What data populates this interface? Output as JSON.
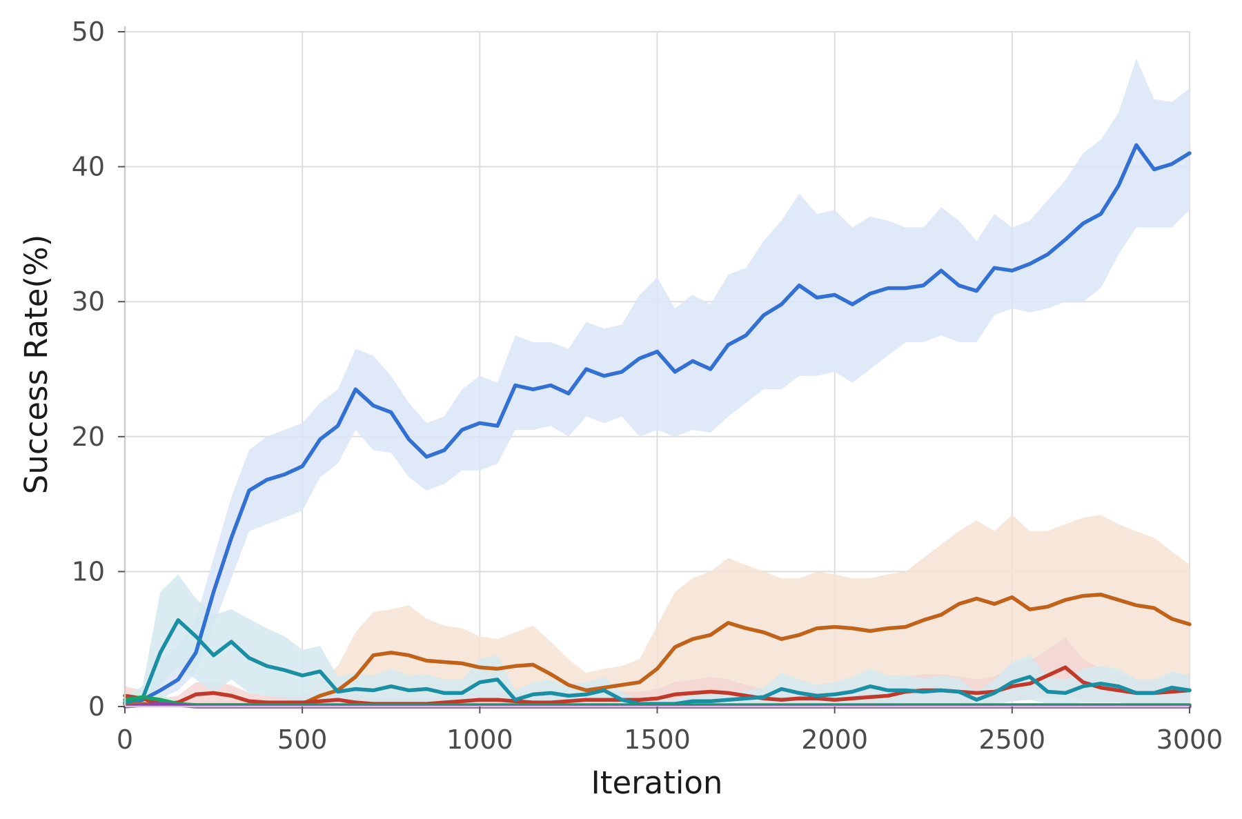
{
  "chart_data": {
    "type": "line",
    "title": "",
    "xlabel": "Iteration",
    "ylabel": "Success Rate(%)",
    "xlim": [
      0,
      3000
    ],
    "ylim": [
      0,
      50
    ],
    "xticks": [
      0,
      500,
      1000,
      1500,
      2000,
      2500,
      3000
    ],
    "yticks": [
      0,
      10,
      20,
      30,
      40,
      50
    ],
    "grid": true,
    "legend": "none",
    "x": [
      0,
      50,
      100,
      150,
      200,
      250,
      300,
      350,
      400,
      450,
      500,
      550,
      600,
      650,
      700,
      750,
      800,
      850,
      900,
      950,
      1000,
      1050,
      1100,
      1150,
      1200,
      1250,
      1300,
      1350,
      1400,
      1450,
      1500,
      1550,
      1600,
      1650,
      1700,
      1750,
      1800,
      1850,
      1900,
      1950,
      2000,
      2050,
      2100,
      2150,
      2200,
      2250,
      2300,
      2350,
      2400,
      2450,
      2500,
      2550,
      2600,
      2650,
      2700,
      2750,
      2800,
      2850,
      2900,
      2950,
      3000
    ],
    "series": [
      {
        "color": "#3370d4",
        "band_color": "#d9e5f7",
        "values": [
          0.2,
          0.5,
          1.2,
          2.0,
          4.0,
          8.5,
          12.5,
          16.0,
          16.8,
          17.2,
          17.8,
          19.8,
          20.8,
          23.5,
          22.3,
          21.8,
          19.8,
          18.5,
          19.0,
          20.5,
          21.0,
          20.8,
          23.8,
          23.5,
          23.8,
          23.2,
          25.0,
          24.5,
          24.8,
          25.8,
          26.3,
          24.8,
          25.6,
          25.0,
          26.8,
          27.5,
          29.0,
          29.8,
          31.2,
          30.3,
          30.5,
          29.8,
          30.6,
          31.0,
          31.0,
          31.2,
          32.3,
          31.2,
          30.8,
          32.5,
          32.3,
          32.8,
          33.5,
          34.6,
          35.8,
          36.5,
          38.6,
          41.6,
          39.8,
          40.2,
          41.0
        ],
        "lower": [
          0.1,
          0.2,
          0.6,
          1.2,
          2.5,
          6.0,
          9.5,
          13.0,
          13.5,
          14.0,
          14.5,
          17.0,
          18.0,
          20.5,
          19.0,
          18.8,
          17.0,
          16.0,
          16.5,
          17.5,
          17.5,
          18.0,
          20.5,
          20.5,
          20.8,
          20.0,
          21.5,
          21.0,
          21.5,
          20.0,
          20.5,
          20.0,
          20.5,
          20.3,
          21.5,
          22.5,
          23.5,
          23.5,
          24.5,
          24.5,
          24.8,
          24.0,
          25.0,
          26.0,
          27.0,
          27.0,
          27.5,
          27.0,
          27.0,
          29.0,
          29.5,
          29.2,
          29.5,
          30.0,
          30.0,
          31.0,
          33.5,
          35.5,
          35.5,
          35.5,
          36.8
        ],
        "upper": [
          0.4,
          1.2,
          3.5,
          4.5,
          6.5,
          11.0,
          15.5,
          19.0,
          20.0,
          20.5,
          21.0,
          22.5,
          23.5,
          26.5,
          26.0,
          24.5,
          22.5,
          21.0,
          21.5,
          23.5,
          24.5,
          24.0,
          27.5,
          27.0,
          27.0,
          26.5,
          28.5,
          28.0,
          28.3,
          30.5,
          31.8,
          29.5,
          30.5,
          29.8,
          32.0,
          32.5,
          34.5,
          36.0,
          38.0,
          36.5,
          36.8,
          35.5,
          36.3,
          36.0,
          35.5,
          35.5,
          37.0,
          36.0,
          34.5,
          36.5,
          35.5,
          36.0,
          37.5,
          39.0,
          41.0,
          42.0,
          44.0,
          48.0,
          45.0,
          44.8,
          45.8
        ]
      },
      {
        "color": "#c0621a",
        "band_color": "#f5e3d3",
        "values": [
          0.2,
          0.2,
          0.2,
          0.1,
          0.1,
          0.1,
          0.1,
          0.1,
          0.1,
          0.1,
          0.2,
          0.8,
          1.2,
          2.2,
          3.8,
          4.0,
          3.8,
          3.4,
          3.3,
          3.2,
          2.9,
          2.8,
          3.0,
          3.1,
          2.4,
          1.6,
          1.2,
          1.4,
          1.6,
          1.8,
          2.8,
          4.4,
          5.0,
          5.3,
          6.2,
          5.8,
          5.5,
          5.0,
          5.3,
          5.8,
          5.9,
          5.8,
          5.6,
          5.8,
          5.9,
          6.4,
          6.8,
          7.6,
          8.0,
          7.6,
          8.1,
          7.2,
          7.4,
          7.9,
          8.2,
          8.3,
          7.9,
          7.5,
          7.3,
          6.5,
          6.1
        ],
        "lower": [
          0.0,
          0.0,
          0.0,
          0.0,
          0.0,
          0.0,
          0.0,
          0.0,
          0.0,
          0.0,
          0.0,
          0.0,
          0.0,
          0.0,
          0.0,
          0.2,
          0.1,
          0.1,
          0.1,
          0.1,
          0.1,
          0.1,
          0.1,
          0.1,
          0.1,
          0.1,
          0.1,
          0.1,
          0.1,
          0.1,
          0.1,
          0.1,
          0.2,
          0.2,
          0.3,
          0.3,
          0.3,
          0.2,
          0.3,
          0.4,
          0.4,
          0.3,
          0.3,
          0.4,
          0.4,
          0.5,
          0.5,
          0.6,
          0.6,
          0.6,
          0.7,
          0.6,
          0.6,
          0.7,
          0.8,
          0.8,
          0.8,
          0.7,
          0.7,
          0.6,
          0.6
        ],
        "upper": [
          0.8,
          0.8,
          0.8,
          0.5,
          0.4,
          0.4,
          0.4,
          0.4,
          0.4,
          0.4,
          0.8,
          2.0,
          3.0,
          5.5,
          7.0,
          7.2,
          7.5,
          6.5,
          6.0,
          5.8,
          5.2,
          5.0,
          5.5,
          6.0,
          4.8,
          3.5,
          2.5,
          2.8,
          3.0,
          3.5,
          6.0,
          8.5,
          9.5,
          10.0,
          11.0,
          10.5,
          10.0,
          9.5,
          9.5,
          10.0,
          9.8,
          9.5,
          9.5,
          9.8,
          10.0,
          11.0,
          12.0,
          13.0,
          13.8,
          13.0,
          14.2,
          13.0,
          13.0,
          13.5,
          14.0,
          14.2,
          13.5,
          13.0,
          12.5,
          11.5,
          10.5
        ]
      },
      {
        "color": "#c0392b",
        "band_color": "#f3d5d2",
        "values": [
          0.8,
          0.6,
          0.2,
          0.3,
          0.9,
          1.0,
          0.8,
          0.4,
          0.3,
          0.3,
          0.3,
          0.4,
          0.5,
          0.3,
          0.2,
          0.2,
          0.2,
          0.2,
          0.3,
          0.4,
          0.5,
          0.5,
          0.4,
          0.3,
          0.3,
          0.4,
          0.5,
          0.5,
          0.5,
          0.5,
          0.6,
          0.9,
          1.0,
          1.1,
          1.0,
          0.8,
          0.6,
          0.5,
          0.6,
          0.6,
          0.5,
          0.6,
          0.7,
          0.8,
          1.1,
          1.2,
          1.2,
          1.1,
          1.0,
          1.1,
          1.5,
          1.7,
          2.3,
          2.9,
          1.8,
          1.4,
          1.2,
          1.0,
          1.0,
          1.1,
          1.2
        ],
        "lower": [
          0.2,
          0.1,
          0.0,
          0.0,
          0.2,
          0.2,
          0.1,
          0.0,
          0.0,
          0.0,
          0.0,
          0.0,
          0.0,
          0.0,
          0.0,
          0.0,
          0.0,
          0.0,
          0.0,
          0.0,
          0.0,
          0.0,
          0.0,
          0.0,
          0.0,
          0.0,
          0.0,
          0.0,
          0.0,
          0.0,
          0.0,
          0.1,
          0.2,
          0.2,
          0.2,
          0.1,
          0.1,
          0.1,
          0.1,
          0.1,
          0.1,
          0.1,
          0.1,
          0.2,
          0.3,
          0.3,
          0.3,
          0.3,
          0.2,
          0.3,
          0.4,
          0.5,
          0.7,
          0.9,
          0.4,
          0.3,
          0.3,
          0.2,
          0.2,
          0.3,
          0.3
        ],
        "upper": [
          1.5,
          1.2,
          0.6,
          0.8,
          1.8,
          1.8,
          1.6,
          1.0,
          0.8,
          0.8,
          0.8,
          1.0,
          1.1,
          0.8,
          0.6,
          0.6,
          0.6,
          0.6,
          0.8,
          1.0,
          1.1,
          1.1,
          1.0,
          0.8,
          0.8,
          0.9,
          1.1,
          1.1,
          1.1,
          1.1,
          1.3,
          1.8,
          2.0,
          2.2,
          2.0,
          1.6,
          1.3,
          1.1,
          1.3,
          1.3,
          1.1,
          1.3,
          1.5,
          1.7,
          2.2,
          2.4,
          2.4,
          2.2,
          2.0,
          2.2,
          3.0,
          3.4,
          4.2,
          5.1,
          3.5,
          2.8,
          2.4,
          2.0,
          2.0,
          2.2,
          2.4
        ]
      },
      {
        "color": "#1a8fa3",
        "band_color": "#d3e9ee",
        "values": [
          0.3,
          0.6,
          4.0,
          6.4,
          5.2,
          3.8,
          4.8,
          3.6,
          3.0,
          2.7,
          2.3,
          2.6,
          1.1,
          1.3,
          1.2,
          1.5,
          1.2,
          1.3,
          1.0,
          1.0,
          1.8,
          2.0,
          0.5,
          0.9,
          1.0,
          0.8,
          0.9,
          1.2,
          0.5,
          0.2,
          0.2,
          0.2,
          0.4,
          0.4,
          0.5,
          0.6,
          0.7,
          1.3,
          1.0,
          0.8,
          0.9,
          1.1,
          1.5,
          1.2,
          1.2,
          1.1,
          1.2,
          1.1,
          0.5,
          1.0,
          1.8,
          2.2,
          1.1,
          1.0,
          1.5,
          1.7,
          1.5,
          1.0,
          1.0,
          1.4,
          1.2
        ],
        "lower": [
          0.0,
          0.1,
          1.5,
          3.0,
          2.0,
          1.0,
          2.0,
          1.0,
          0.8,
          0.6,
          0.4,
          0.5,
          0.1,
          0.2,
          0.2,
          0.3,
          0.2,
          0.2,
          0.1,
          0.1,
          0.3,
          0.4,
          0.0,
          0.1,
          0.1,
          0.1,
          0.1,
          0.2,
          0.0,
          0.0,
          0.0,
          0.0,
          0.0,
          0.0,
          0.0,
          0.0,
          0.1,
          0.2,
          0.1,
          0.1,
          0.1,
          0.2,
          0.3,
          0.2,
          0.2,
          0.2,
          0.2,
          0.2,
          0.0,
          0.1,
          0.4,
          0.5,
          0.2,
          0.1,
          0.3,
          0.3,
          0.3,
          0.1,
          0.1,
          0.2,
          0.2
        ],
        "upper": [
          0.8,
          1.5,
          8.5,
          9.8,
          8.0,
          6.8,
          7.2,
          6.5,
          5.8,
          5.2,
          4.2,
          4.5,
          2.2,
          2.5,
          2.3,
          2.8,
          2.3,
          2.4,
          2.0,
          2.0,
          3.5,
          3.8,
          1.2,
          1.8,
          2.0,
          1.6,
          1.8,
          2.2,
          1.1,
          0.5,
          0.5,
          0.5,
          0.9,
          0.9,
          1.0,
          1.2,
          1.4,
          2.5,
          2.0,
          1.6,
          1.8,
          2.2,
          2.8,
          2.3,
          2.3,
          2.1,
          2.3,
          2.1,
          1.1,
          2.0,
          3.3,
          3.8,
          2.2,
          2.0,
          2.8,
          3.0,
          2.8,
          2.0,
          2.0,
          2.6,
          2.3
        ]
      },
      {
        "color": "#17a06a",
        "band_color": "#d3eddf",
        "values": [
          0.5,
          0.7,
          0.5,
          0.2,
          0.1,
          0.1,
          0.1,
          0.1,
          0.1,
          0.1,
          0.1,
          0.1,
          0.1,
          0.1,
          0.1,
          0.1,
          0.1,
          0.1,
          0.1,
          0.1,
          0.1,
          0.1,
          0.1,
          0.1,
          0.1,
          0.1,
          0.1,
          0.1,
          0.1,
          0.1,
          0.1,
          0.1,
          0.1,
          0.1,
          0.1,
          0.1,
          0.1,
          0.1,
          0.1,
          0.1,
          0.1,
          0.1,
          0.1,
          0.1,
          0.1,
          0.1,
          0.1,
          0.1,
          0.1,
          0.1,
          0.1,
          0.1,
          0.1,
          0.1,
          0.1,
          0.1,
          0.1,
          0.1,
          0.1,
          0.1,
          0.1
        ],
        "lower": [
          0.2,
          0.3,
          0.2,
          0.0,
          0.0,
          0.0,
          0.0,
          0.0,
          0.0,
          0.0,
          0.0,
          0.0,
          0.0,
          0.0,
          0.0,
          0.0,
          0.0,
          0.0,
          0.0,
          0.0,
          0.0,
          0.0,
          0.0,
          0.0,
          0.0,
          0.0,
          0.0,
          0.0,
          0.0,
          0.0,
          0.0,
          0.0,
          0.0,
          0.0,
          0.0,
          0.0,
          0.0,
          0.0,
          0.0,
          0.0,
          0.0,
          0.0,
          0.0,
          0.0,
          0.0,
          0.0,
          0.0,
          0.0,
          0.0,
          0.0,
          0.0,
          0.0,
          0.0,
          0.0,
          0.0,
          0.0,
          0.0,
          0.0,
          0.0,
          0.0,
          0.0
        ],
        "upper": [
          0.9,
          1.1,
          0.9,
          0.4,
          0.2,
          0.2,
          0.2,
          0.2,
          0.2,
          0.2,
          0.2,
          0.2,
          0.2,
          0.2,
          0.2,
          0.2,
          0.2,
          0.2,
          0.2,
          0.2,
          0.2,
          0.2,
          0.2,
          0.2,
          0.2,
          0.2,
          0.2,
          0.2,
          0.2,
          0.2,
          0.2,
          0.2,
          0.2,
          0.2,
          0.2,
          0.2,
          0.2,
          0.2,
          0.2,
          0.2,
          0.2,
          0.2,
          0.2,
          0.2,
          0.2,
          0.2,
          0.2,
          0.2,
          0.2,
          0.2,
          0.2,
          0.2,
          0.2,
          0.2,
          0.2,
          0.2,
          0.2,
          0.2,
          0.2,
          0.2,
          0.2
        ]
      },
      {
        "color": "#8e44ad",
        "band_color": "#e6d8ee",
        "values": [
          0.0,
          0.1,
          0.2,
          0.1,
          0.0,
          0.0,
          0.0,
          0.0,
          0.0,
          0.0,
          0.0,
          0.0,
          0.0,
          0.0,
          0.0,
          0.0,
          0.0,
          0.0,
          0.0,
          0.0,
          0.0,
          0.0,
          0.0,
          0.0,
          0.0,
          0.0,
          0.0,
          0.0,
          0.0,
          0.0,
          0.0,
          0.0,
          0.0,
          0.0,
          0.0,
          0.0,
          0.0,
          0.0,
          0.0,
          0.0,
          0.0,
          0.0,
          0.0,
          0.0,
          0.0,
          0.0,
          0.0,
          0.0,
          0.0,
          0.0,
          0.0,
          0.0,
          0.0,
          0.0,
          0.0,
          0.0,
          0.0,
          0.0,
          0.0,
          0.0,
          0.0
        ],
        "lower": [
          0.0,
          0.0,
          0.0,
          0.0,
          0.0,
          0.0,
          0.0,
          0.0,
          0.0,
          0.0,
          0.0,
          0.0,
          0.0,
          0.0,
          0.0,
          0.0,
          0.0,
          0.0,
          0.0,
          0.0,
          0.0,
          0.0,
          0.0,
          0.0,
          0.0,
          0.0,
          0.0,
          0.0,
          0.0,
          0.0,
          0.0,
          0.0,
          0.0,
          0.0,
          0.0,
          0.0,
          0.0,
          0.0,
          0.0,
          0.0,
          0.0,
          0.0,
          0.0,
          0.0,
          0.0,
          0.0,
          0.0,
          0.0,
          0.0,
          0.0,
          0.0,
          0.0,
          0.0,
          0.0,
          0.0,
          0.0,
          0.0,
          0.0,
          0.0,
          0.0,
          0.0
        ],
        "upper": [
          0.2,
          0.3,
          0.5,
          0.3,
          0.1,
          0.1,
          0.1,
          0.1,
          0.1,
          0.1,
          0.1,
          0.1,
          0.1,
          0.1,
          0.1,
          0.1,
          0.1,
          0.1,
          0.1,
          0.1,
          0.1,
          0.1,
          0.1,
          0.1,
          0.1,
          0.1,
          0.1,
          0.1,
          0.1,
          0.1,
          0.1,
          0.1,
          0.1,
          0.1,
          0.1,
          0.1,
          0.1,
          0.1,
          0.1,
          0.1,
          0.1,
          0.1,
          0.1,
          0.1,
          0.1,
          0.1,
          0.1,
          0.1,
          0.1,
          0.1,
          0.1,
          0.1,
          0.1,
          0.1,
          0.1,
          0.1,
          0.1,
          0.1,
          0.1,
          0.1,
          0.1
        ]
      }
    ]
  }
}
